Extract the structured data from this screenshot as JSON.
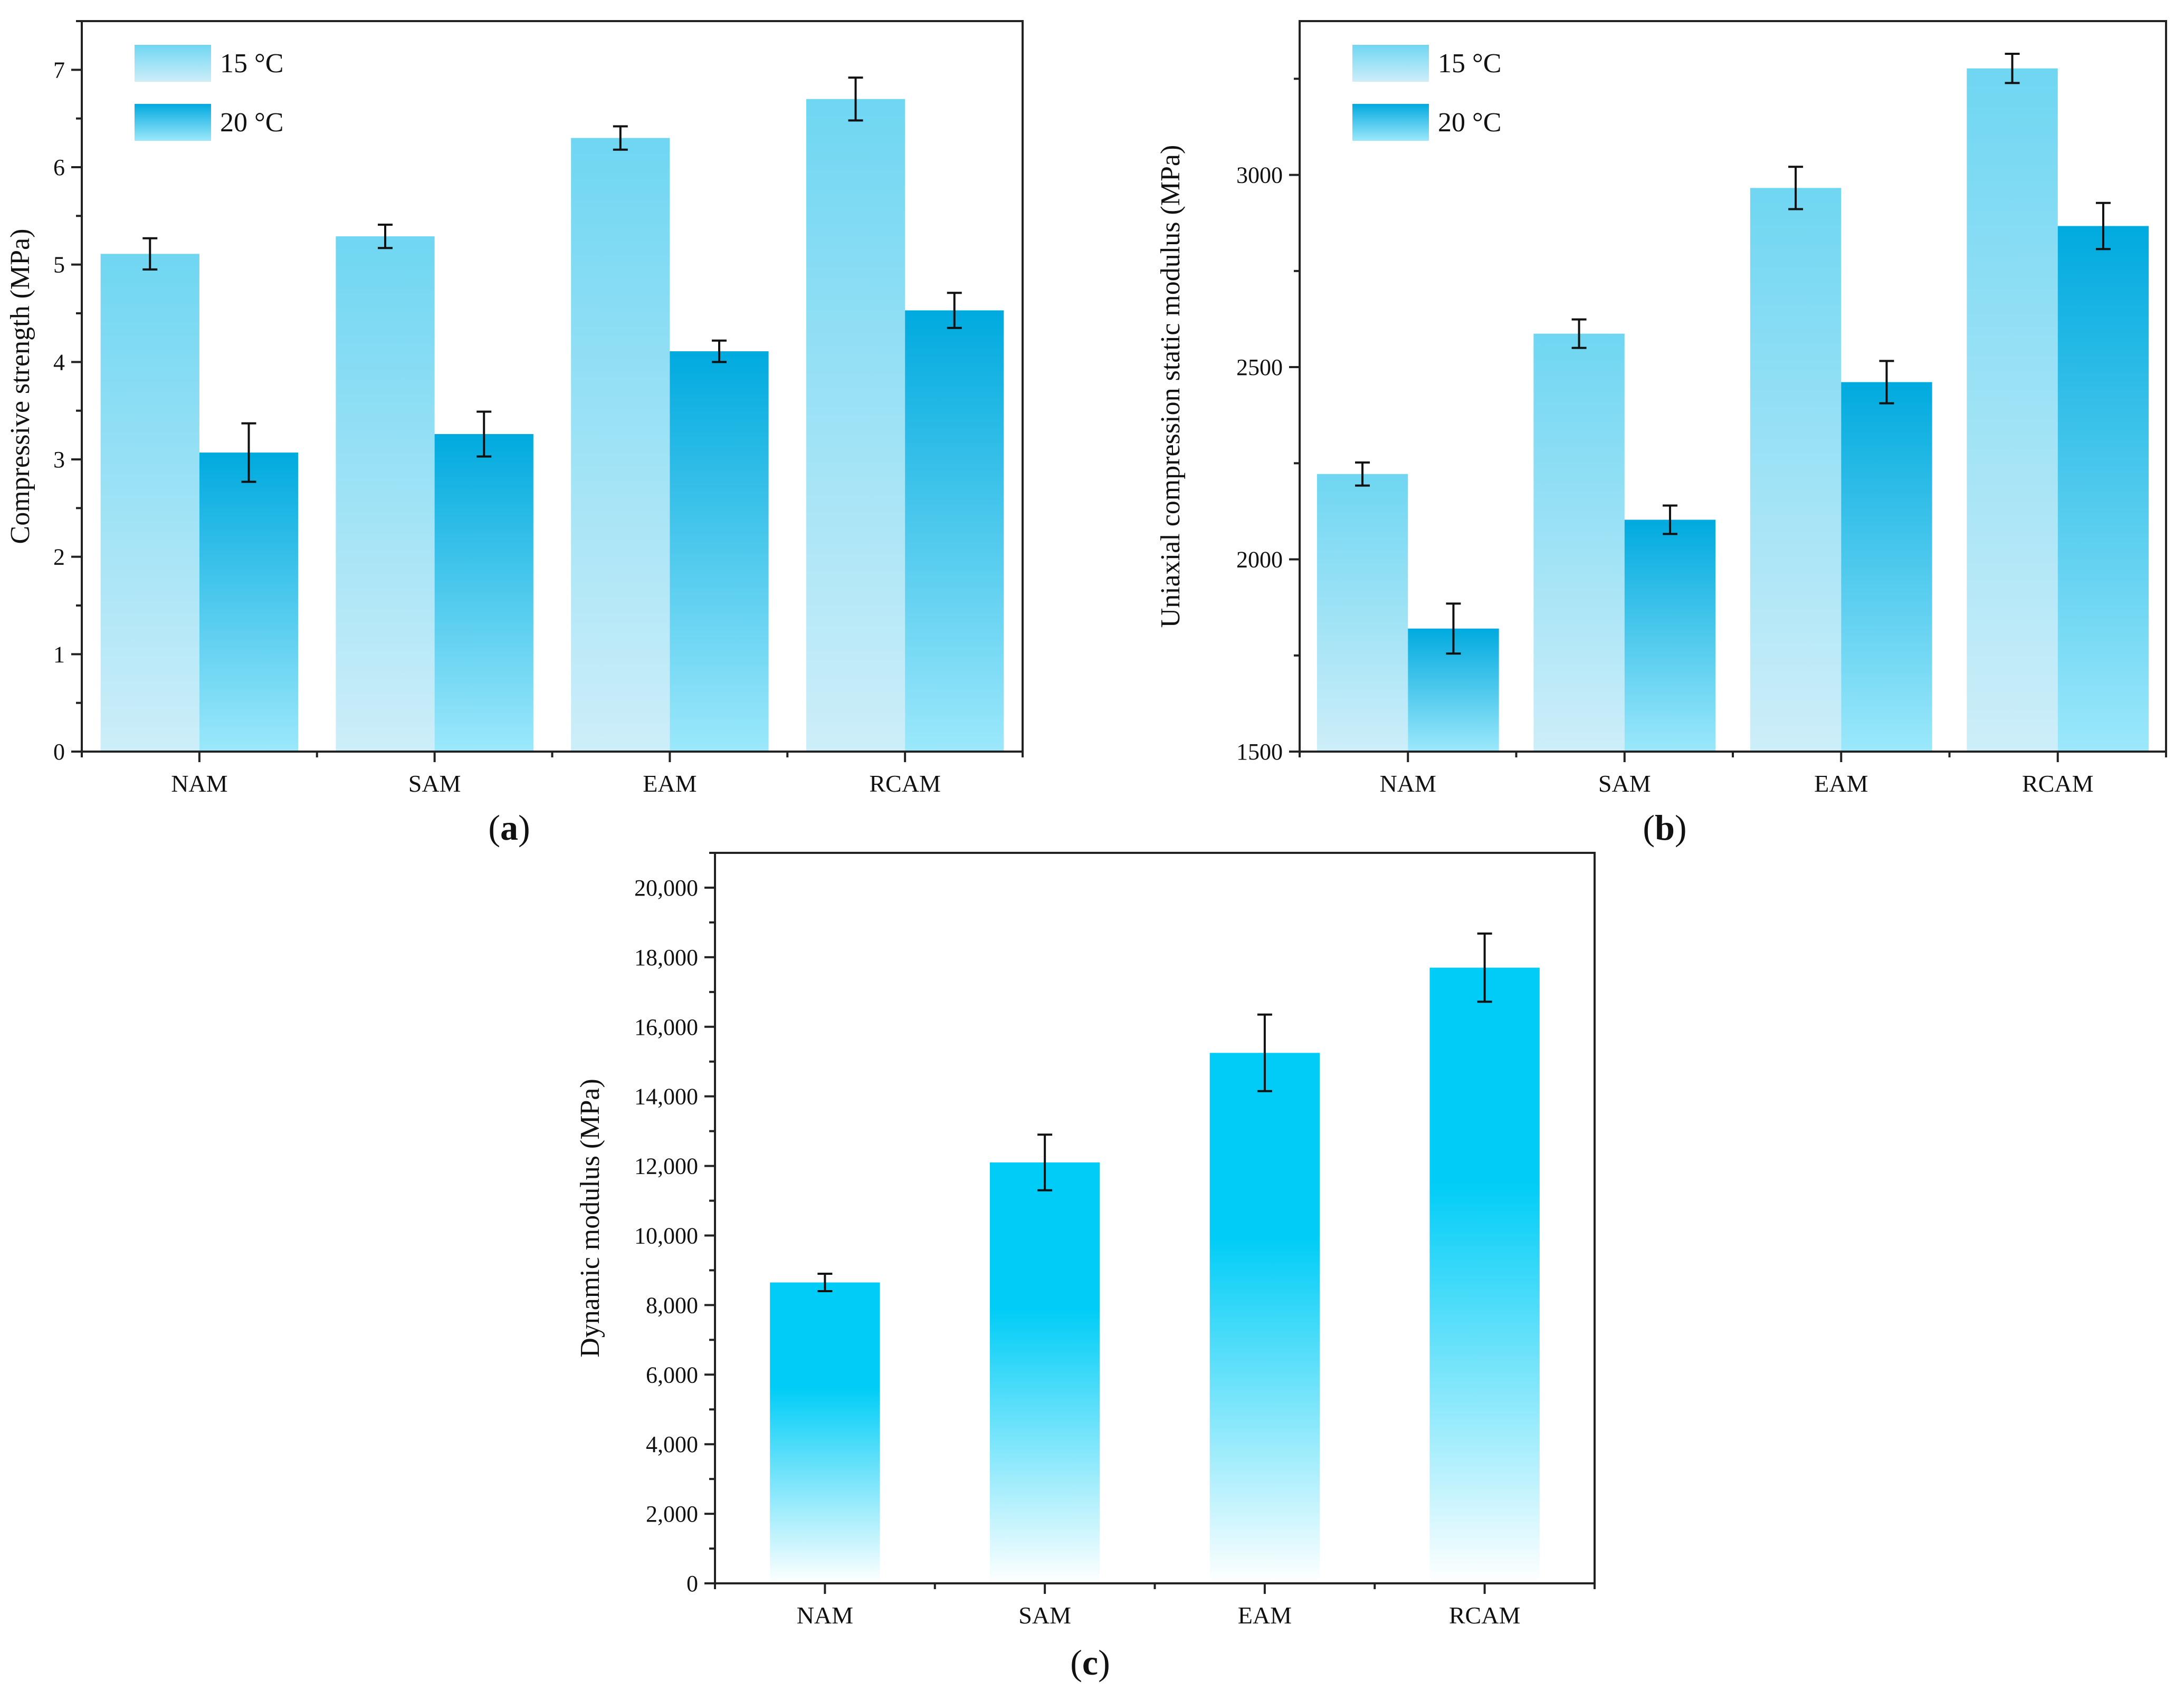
{
  "figure": {
    "panel_labels": [
      {
        "open": "(",
        "letter": "a",
        "close": ")"
      },
      {
        "open": "(",
        "letter": "b",
        "close": ")"
      },
      {
        "open": "(",
        "letter": "c",
        "close": ")"
      }
    ]
  },
  "colors": {
    "series_15": {
      "top": "#6fd6f2",
      "bottom": "#cdeef9"
    },
    "series_20": {
      "top": "#00aadf",
      "bottom": "#9ce8fb"
    },
    "single": {
      "top": "#00cdf7",
      "bottom": "#ffffff"
    }
  },
  "chart_data": [
    {
      "type": "bar",
      "title": "",
      "xlabel": "",
      "ylabel": "Compressive strength (MPa)",
      "categories": [
        "NAM",
        "SAM",
        "EAM",
        "RCAM"
      ],
      "series": [
        {
          "name": "15 °C",
          "values": [
            5.11,
            5.29,
            6.3,
            6.7
          ],
          "errors": [
            0.16,
            0.12,
            0.12,
            0.22
          ]
        },
        {
          "name": "20 °C",
          "values": [
            3.07,
            3.26,
            4.11,
            4.53
          ],
          "errors": [
            0.3,
            0.23,
            0.11,
            0.18
          ]
        }
      ],
      "ylim": [
        0,
        7.5
      ],
      "yticks": [
        0,
        1,
        2,
        3,
        4,
        5,
        6,
        7
      ],
      "ytick_labels": [
        "0",
        "1",
        "2",
        "3",
        "4",
        "5",
        "6",
        "7"
      ],
      "legend": "top-left",
      "grid": false
    },
    {
      "type": "bar",
      "title": "",
      "xlabel": "",
      "ylabel": "Uniaxial compression static modulus (MPa)",
      "categories": [
        "NAM",
        "SAM",
        "EAM",
        "RCAM"
      ],
      "series": [
        {
          "name": "15 °C",
          "values": [
            2222,
            2587,
            2966,
            3277
          ],
          "errors": [
            30,
            37,
            55,
            38
          ]
        },
        {
          "name": "20 °C",
          "values": [
            1820,
            2103,
            2461,
            2867
          ],
          "errors": [
            65,
            37,
            55,
            60
          ]
        }
      ],
      "ylim": [
        1500,
        3400
      ],
      "yticks": [
        1500,
        2000,
        2500,
        3000
      ],
      "ytick_labels": [
        "1500",
        "2000",
        "2500",
        "3000"
      ],
      "legend": "top-left",
      "grid": false
    },
    {
      "type": "bar",
      "title": "",
      "xlabel": "",
      "ylabel": "Dynamic modulus (MPa)",
      "categories": [
        "NAM",
        "SAM",
        "EAM",
        "RCAM"
      ],
      "series": [
        {
          "name": "",
          "values": [
            8650,
            12100,
            15250,
            17700
          ],
          "errors": [
            250,
            800,
            1100,
            980
          ]
        }
      ],
      "ylim": [
        0,
        21000
      ],
      "yticks": [
        0,
        2000,
        4000,
        6000,
        8000,
        10000,
        12000,
        14000,
        16000,
        18000,
        20000
      ],
      "ytick_labels": [
        "0",
        "2,000",
        "4,000",
        "6,000",
        "8,000",
        "10,000",
        "12,000",
        "14,000",
        "16,000",
        "18,000",
        "20,000"
      ],
      "legend": "none",
      "grid": false
    }
  ]
}
